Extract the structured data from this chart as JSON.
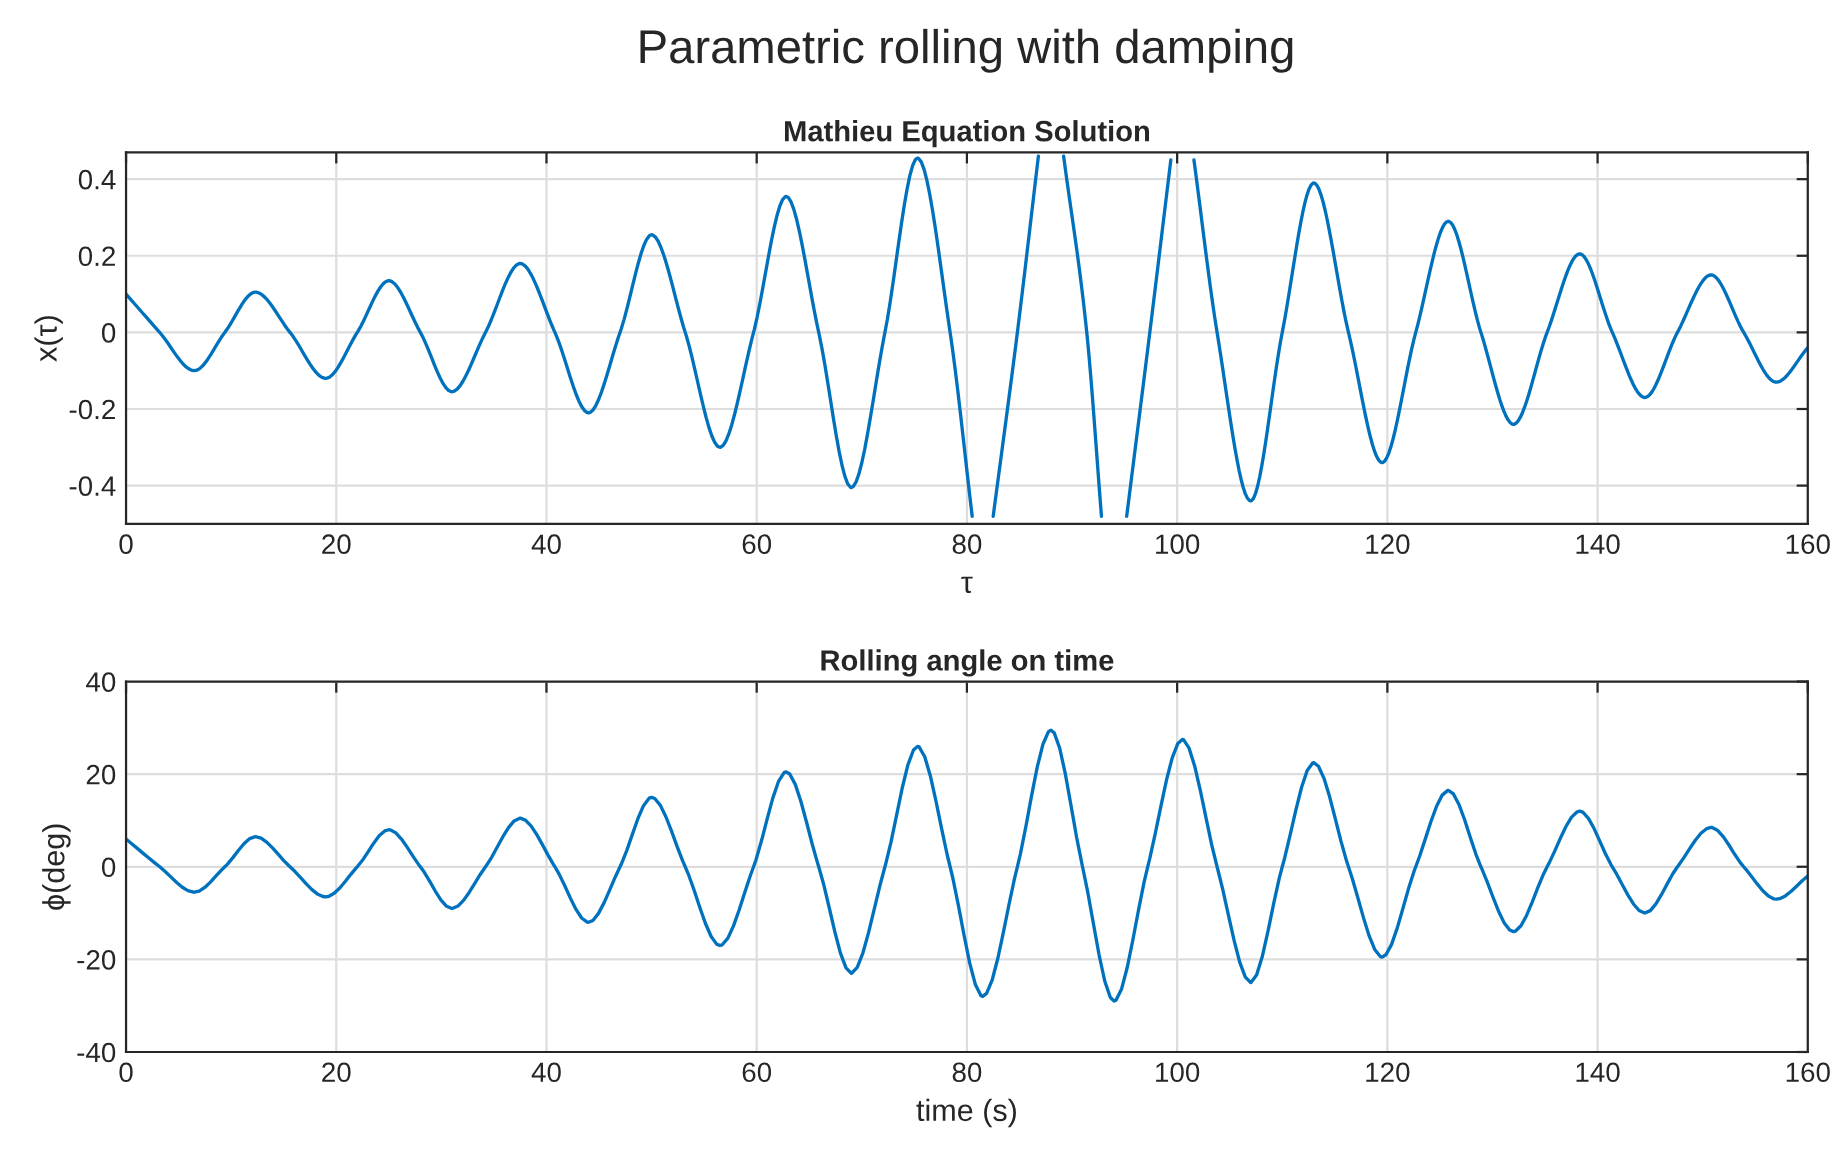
{
  "chart_data": [
    {
      "type": "line",
      "title": "Mathieu Equation Solution",
      "annotations": [
        "Parametric rolling with damping"
      ],
      "xlabel": "τ",
      "ylabel": "x(τ)",
      "x": [
        0,
        3.2,
        6.5,
        9.4,
        12.3,
        15.6,
        19,
        22,
        25,
        28,
        31,
        34.2,
        37.5,
        40.8,
        44,
        47,
        50,
        53.2,
        56.5,
        59.7,
        62.8,
        65.9,
        69,
        72.2,
        75.3,
        78.4,
        80.5,
        81.5,
        82.5,
        84.8,
        86.8,
        88,
        89.2,
        91.4,
        92.8,
        94,
        95.2,
        97.4,
        99.4,
        100.5,
        101.6,
        103.8,
        107,
        110,
        113,
        116.3,
        119.5,
        122.7,
        125.8,
        128.9,
        132,
        135.2,
        138.3,
        141.4,
        144.5,
        147.6,
        150.8,
        153.9,
        157,
        160
      ],
      "series": [
        {
          "color": "#0072bd",
          "values": [
            0.1,
            0,
            -0.1,
            0,
            0.105,
            0,
            -0.12,
            0,
            0.135,
            0,
            -0.155,
            0,
            0.18,
            0,
            -0.21,
            0,
            0.255,
            0,
            -0.3,
            0,
            0.355,
            0,
            -0.405,
            0,
            0.455,
            0,
            -0.48,
            null,
            -0.48,
            0,
            0.46,
            null,
            0.46,
            0,
            -0.48,
            null,
            -0.48,
            0,
            0.45,
            null,
            0.45,
            0,
            -0.44,
            0,
            0.39,
            0,
            -0.34,
            0,
            0.29,
            0,
            -0.24,
            0,
            0.205,
            0,
            -0.17,
            0,
            0.15,
            0,
            -0.13,
            -0.04
          ]
        }
      ],
      "xlim": [
        0,
        160
      ],
      "xticks": [
        0,
        20,
        40,
        60,
        80,
        100,
        120,
        140,
        160
      ],
      "ylim": [
        -0.5,
        0.47
      ],
      "yticks": [
        -0.4,
        -0.2,
        0,
        0.2,
        0.4
      ],
      "grid": true,
      "line_style": "solid",
      "marker": "none"
    },
    {
      "type": "line",
      "title": "Rolling angle on time",
      "xlabel": "time (s)",
      "ylabel": "ϕ(deg)",
      "x": [
        0,
        3.2,
        6.5,
        9.4,
        12.3,
        15.6,
        19,
        22,
        25,
        28,
        31,
        34.2,
        37.5,
        40.8,
        44,
        47,
        50,
        53.2,
        56.5,
        59.7,
        62.8,
        65.9,
        69,
        72.2,
        75.3,
        78.4,
        81.5,
        84.8,
        88,
        91,
        94,
        97.2,
        100.5,
        103.8,
        107,
        110,
        113,
        116.3,
        119.5,
        122.7,
        125.8,
        128.9,
        132,
        135.2,
        138.3,
        141.4,
        144.5,
        147.6,
        150.8,
        153.9,
        157,
        160
      ],
      "series": [
        {
          "color": "#0072bd",
          "values": [
            6,
            0,
            -5.5,
            0,
            6.5,
            0,
            -6.5,
            0,
            8,
            0,
            -9,
            0,
            10.5,
            0,
            -12,
            0,
            15,
            0,
            -17,
            0,
            20.5,
            0,
            -23,
            0,
            26,
            0,
            -28,
            0,
            29.5,
            0,
            -29,
            0,
            27.5,
            0,
            -25,
            0,
            22.5,
            0,
            -19.5,
            0,
            16.5,
            0,
            -14,
            0,
            12,
            0,
            -10,
            0,
            8.5,
            0,
            -7,
            -2
          ]
        }
      ],
      "xlim": [
        0,
        160
      ],
      "xticks": [
        0,
        20,
        40,
        60,
        80,
        100,
        120,
        140,
        160
      ],
      "ylim": [
        -40,
        40
      ],
      "yticks": [
        -40,
        -20,
        0,
        20,
        40
      ],
      "grid": true,
      "line_style": "solid",
      "marker": "none"
    }
  ]
}
